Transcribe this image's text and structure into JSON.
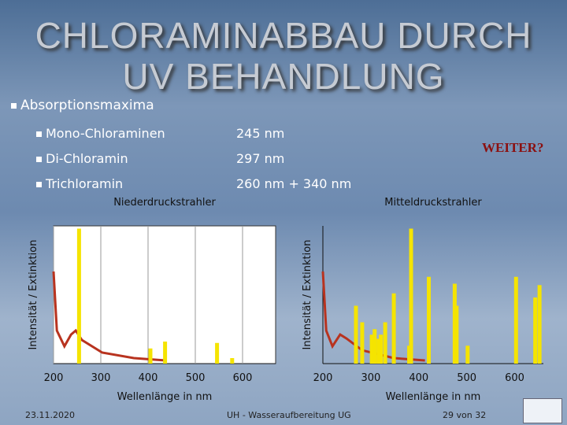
{
  "header": {
    "title_line1": "CHLORAMINABBAU DURCH",
    "title_line2": "UV BEHANDLUNG"
  },
  "bullets": {
    "heading": "Absorptionsmaxima",
    "items": [
      {
        "name": "Mono-Chloraminen",
        "value": "245 nm"
      },
      {
        "name": "Di-Chloramin",
        "value": "297 nm"
      },
      {
        "name": "Trichloramin",
        "value": "260 nm + 340 nm"
      }
    ]
  },
  "link": "WEITER?",
  "chart_data": [
    {
      "type": "bar",
      "title": "Niederdruckstrahler",
      "x_label": "Wellenlänge in nm",
      "y_label": "Intensität / Extinktion",
      "x": [
        254,
        405,
        436,
        546,
        578
      ],
      "values": [
        98,
        11,
        16,
        15,
        4
      ],
      "color": "#f5e400",
      "curve_x": [
        200,
        207,
        223,
        237,
        247,
        260,
        303,
        370,
        437
      ],
      "curve_y": [
        66.9,
        24,
        12.6,
        21.1,
        24,
        17.1,
        8,
        4,
        2.3
      ],
      "curve_color": "#b8331f",
      "xlim": [
        200,
        670
      ],
      "ylim": [
        0,
        100
      ],
      "xticks": [
        200,
        300,
        400,
        500,
        600
      ],
      "grid": true,
      "plot_background": "#ffffff"
    },
    {
      "type": "bar",
      "title": "Mitteldruckstrahler",
      "x_label": "Wellenlänge in nm",
      "y_label": "Intensität / Extinktion",
      "x": [
        269,
        282,
        302,
        308,
        316,
        321,
        330,
        348,
        380,
        384,
        421,
        475,
        479,
        502,
        603,
        643,
        652
      ],
      "values": [
        42,
        30,
        21,
        25,
        18,
        21,
        30,
        51,
        13,
        98,
        63,
        58,
        42,
        13,
        63,
        48,
        57
      ],
      "color": "#f5e400",
      "curve_x": [
        200,
        207,
        220,
        236,
        249,
        282,
        348,
        413
      ],
      "curve_y": [
        66.9,
        24,
        12.6,
        21.1,
        18.3,
        9.7,
        4,
        2.3
      ],
      "curve_color": "#b8331f",
      "xlim": [
        200,
        660
      ],
      "ylim": [
        0,
        100
      ],
      "xticks": [
        200,
        300,
        400,
        500,
        600
      ],
      "grid": false,
      "plot_background": "none"
    }
  ],
  "footer": {
    "date": "23.11.2020",
    "center": "UH - Wasseraufbereitung UG",
    "page": "29 von 32"
  }
}
